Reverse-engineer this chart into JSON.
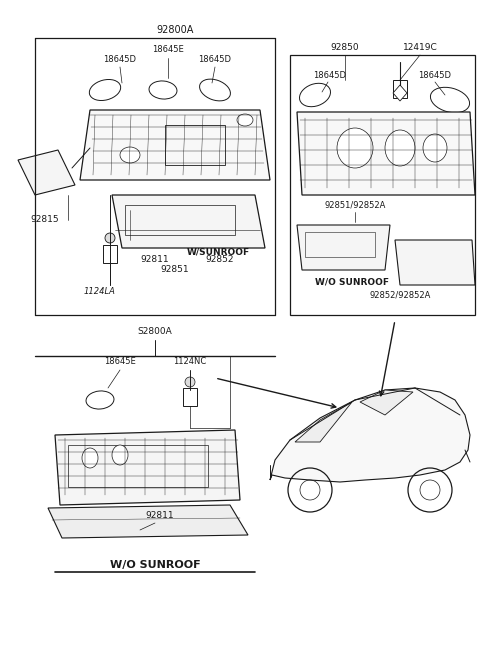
{
  "bg_color": "#ffffff",
  "lc": "#1a1a1a",
  "fig_w": 4.8,
  "fig_h": 6.57,
  "dpi": 100,
  "top_box_label": "92800A",
  "right_box_labels": [
    "92850",
    "12419C"
  ],
  "bottom_box_label": "S2800A",
  "top_left_parts": {
    "label18645E": "18645E",
    "label18645D_l": "18645D",
    "label18645D_r": "18645D",
    "label92811": "92811",
    "label92852": "92852",
    "label92851": "92851",
    "labelWSUNROOF": "W/SUNROOF",
    "label92815": "92815",
    "label1124LA": "1124LA"
  },
  "right_parts": {
    "label18645D_l": "18645D",
    "label18645D_r": "18645D",
    "label92851_92852A": "92851/92852A",
    "labelWO": "W/O SUNROOF",
    "label92852_92852A": "92852/92852A"
  },
  "bottom_parts": {
    "label18645E": "18645E",
    "label1124NC": "1124NC",
    "label92811": "92811",
    "labelWO": "W/O SUNROOF"
  }
}
